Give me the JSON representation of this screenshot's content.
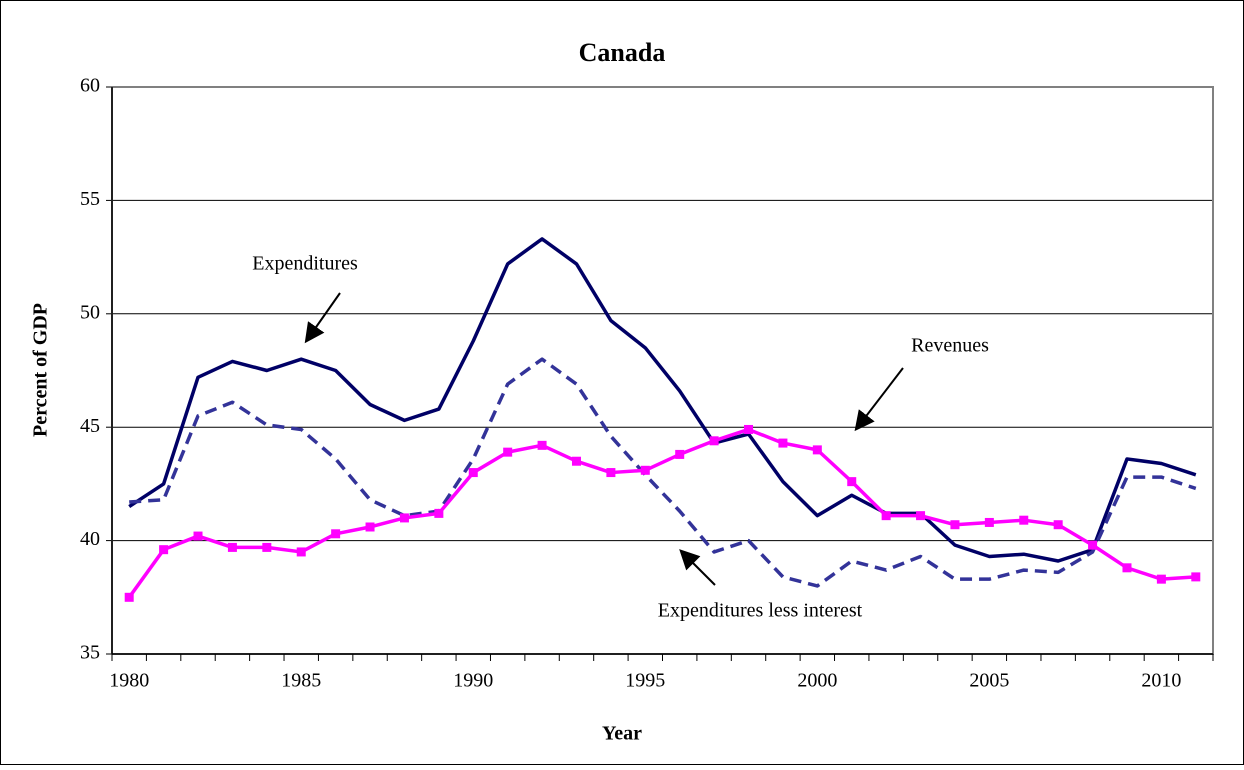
{
  "chart_data": {
    "type": "line",
    "title": "Canada",
    "x_label": "Year",
    "y_label": "Percent of GDP",
    "x": [
      1980,
      1981,
      1982,
      1983,
      1984,
      1985,
      1986,
      1987,
      1988,
      1989,
      1990,
      1991,
      1992,
      1993,
      1994,
      1995,
      1996,
      1997,
      1998,
      1999,
      2000,
      2001,
      2002,
      2003,
      2004,
      2005,
      2006,
      2007,
      2008,
      2009,
      2010,
      2011
    ],
    "xlim": [
      1979.5,
      2011.5
    ],
    "xticks": [
      1980,
      1985,
      1990,
      1995,
      2000,
      2005,
      2010
    ],
    "ylim": [
      35,
      60
    ],
    "yticks": [
      35,
      40,
      45,
      50,
      55,
      60
    ],
    "grid": true,
    "series": [
      {
        "name": "Expenditures",
        "color": "#000066",
        "dash": false,
        "marker": "none",
        "values": [
          41.5,
          42.5,
          47.2,
          47.9,
          47.5,
          48.0,
          47.5,
          46.0,
          45.3,
          45.8,
          48.8,
          52.2,
          53.3,
          52.2,
          49.7,
          48.5,
          46.6,
          44.3,
          44.7,
          42.6,
          41.1,
          42.0,
          41.2,
          41.2,
          39.8,
          39.3,
          39.4,
          39.1,
          39.6,
          43.6,
          43.4,
          42.9
        ]
      },
      {
        "name": "Expenditures less interest",
        "color": "#333399",
        "dash": true,
        "marker": "none",
        "values": [
          41.7,
          41.8,
          45.5,
          46.1,
          45.1,
          44.9,
          43.6,
          41.8,
          41.1,
          41.3,
          43.6,
          46.9,
          48.0,
          46.9,
          44.6,
          42.9,
          41.3,
          39.5,
          40.0,
          38.4,
          38.0,
          39.1,
          38.7,
          39.3,
          38.3,
          38.3,
          38.7,
          38.6,
          39.5,
          42.8,
          42.8,
          42.3
        ]
      },
      {
        "name": "Revenues",
        "color": "#ff00ff",
        "dash": false,
        "marker": "square",
        "values": [
          37.5,
          39.6,
          40.2,
          39.7,
          39.7,
          39.5,
          40.3,
          40.6,
          41.0,
          41.2,
          43.0,
          43.9,
          44.2,
          43.5,
          43.0,
          43.1,
          43.8,
          44.4,
          44.9,
          44.3,
          44.0,
          42.6,
          41.1,
          41.1,
          40.7,
          40.8,
          40.9,
          40.7,
          39.8,
          38.8,
          38.3,
          38.4
        ]
      }
    ]
  }
}
